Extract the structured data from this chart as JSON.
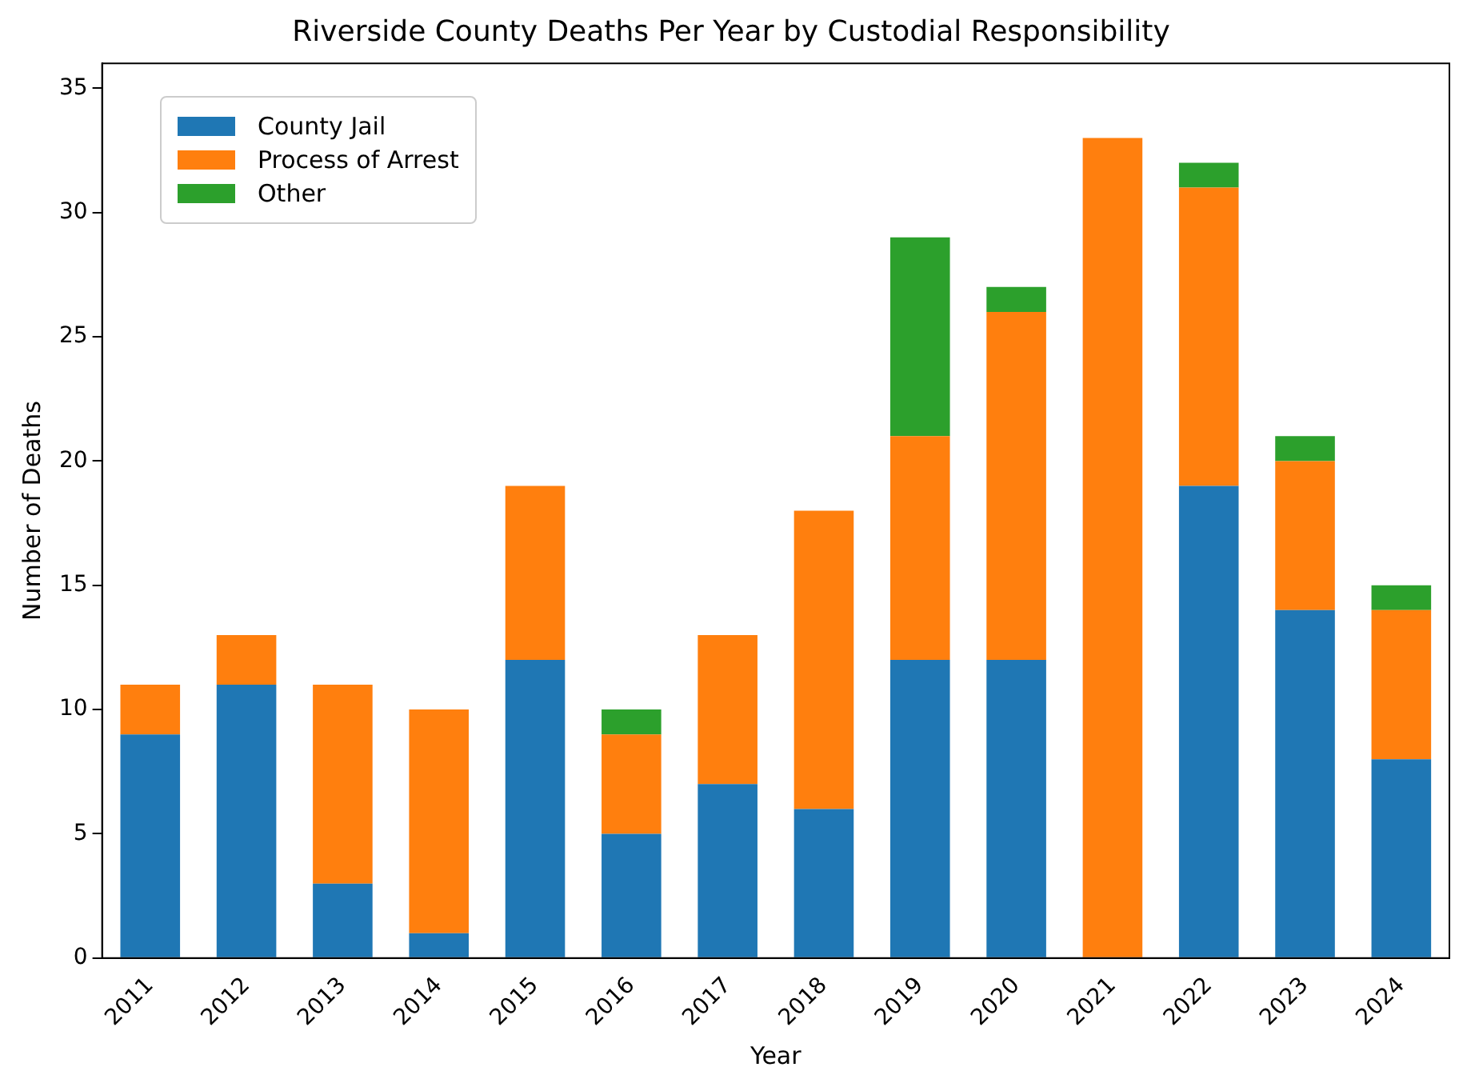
{
  "chart_data": {
    "type": "bar",
    "title": "Riverside County Deaths Per Year by Custodial Responsibility",
    "xlabel": "Year",
    "ylabel": "Number of Deaths",
    "categories": [
      "2011",
      "2012",
      "2013",
      "2014",
      "2015",
      "2016",
      "2017",
      "2018",
      "2019",
      "2020",
      "2021",
      "2022",
      "2023",
      "2024"
    ],
    "series": [
      {
        "name": "County Jail",
        "color": "#1f77b4",
        "values": [
          9,
          11,
          3,
          1,
          12,
          5,
          7,
          6,
          12,
          12,
          0,
          19,
          14,
          8
        ]
      },
      {
        "name": "Process of Arrest",
        "color": "#ff7f0e",
        "values": [
          2,
          2,
          8,
          9,
          7,
          4,
          6,
          12,
          9,
          14,
          33,
          12,
          6,
          6
        ]
      },
      {
        "name": "Other",
        "color": "#2ca02c",
        "values": [
          0,
          0,
          0,
          0,
          0,
          1,
          0,
          0,
          8,
          1,
          0,
          1,
          1,
          1
        ]
      }
    ],
    "stacked": true,
    "ylim": [
      0,
      36
    ],
    "yticks": [
      0,
      5,
      10,
      15,
      20,
      25,
      30,
      35
    ],
    "grid": false,
    "legend": "top left"
  }
}
